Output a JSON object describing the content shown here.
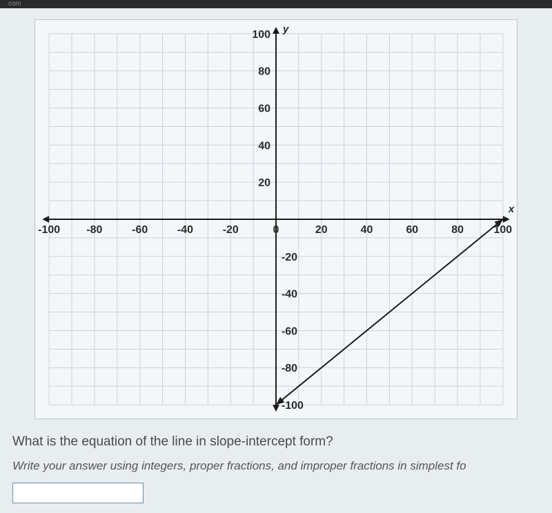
{
  "browser_tab": "com",
  "question_text": "What is the equation of the line in slope-intercept form?",
  "instruction_text": "Write your answer using integers, proper fractions, and improper fractions in simplest fo",
  "chart": {
    "type": "line",
    "grid_step": 10,
    "xlim": [
      -100,
      100
    ],
    "ylim": [
      -100,
      100
    ],
    "x_tick_step": 20,
    "y_tick_step": 20,
    "x_ticks": [
      -100,
      -80,
      -60,
      -40,
      -20,
      0,
      20,
      40,
      60,
      80,
      100
    ],
    "y_ticks_pos": [
      20,
      40,
      60,
      80,
      100
    ],
    "y_ticks_neg": [
      -20,
      -40,
      -60,
      -80,
      -100
    ],
    "x_var": "x",
    "y_var": "y",
    "grid_color": "#c8d2db",
    "grid_width": 1,
    "axis_color": "#1a1a1a",
    "axis_width": 2,
    "background_color": "#f4f7fa",
    "label_fontsize": 16,
    "line": {
      "points": [
        [
          0,
          -100
        ],
        [
          100,
          0
        ]
      ],
      "color": "#1a1a1a",
      "width": 2
    }
  }
}
